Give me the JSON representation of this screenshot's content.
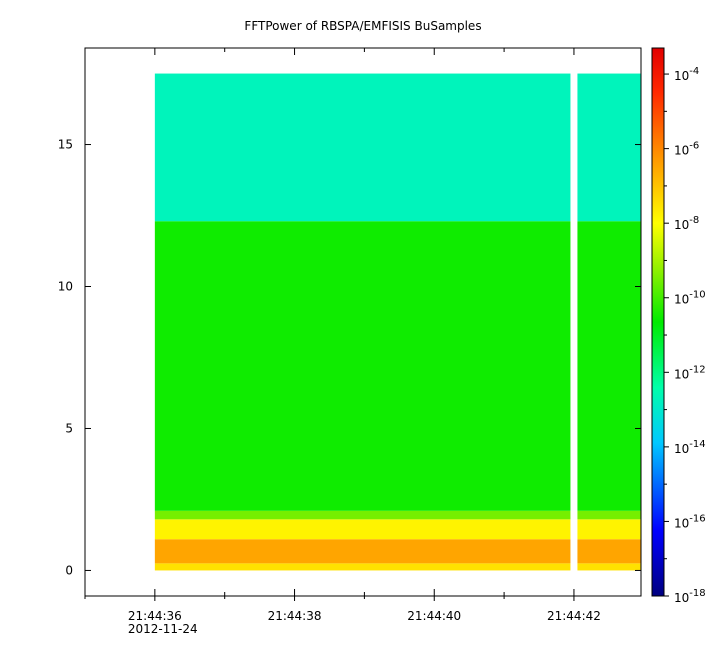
{
  "chart_data": {
    "type": "heatmap",
    "title": "FFTPower of RBSPA/EMFISIS  BuSamples",
    "xlabel": "",
    "ylabel": "",
    "x_axis": {
      "kind": "time",
      "date_label": "2012-11-24",
      "ticks": [
        "21:44:36",
        "21:44:38",
        "21:44:40",
        "21:44:42"
      ],
      "minor_ticks_per_interval": 2,
      "xlim": [
        "21:44:35",
        "21:44:42.96"
      ]
    },
    "y_axis": {
      "ticks": [
        0,
        5,
        10,
        15
      ],
      "ylim": [
        -0.9,
        18.4
      ]
    },
    "colorbar": {
      "scale": "log",
      "colormap": "rainbow",
      "range": [
        1e-18,
        0.0005
      ],
      "tick_base": "10",
      "tick_exponents": [
        "-4",
        "-6",
        "-8",
        "-10",
        "-12",
        "-14",
        "-16",
        "-18"
      ],
      "tick_values": [
        -4,
        -6,
        -8,
        -10,
        -12,
        -14,
        -16,
        -18
      ]
    },
    "data": {
      "x_start": "21:44:36",
      "x_end": "21:44:43",
      "y_top": 17.5,
      "bands": [
        {
          "y_from": 0.0,
          "y_to": 0.25,
          "log10_power": -7.5
        },
        {
          "y_from": 0.25,
          "y_to": 1.1,
          "log10_power": -6.5
        },
        {
          "y_from": 1.1,
          "y_to": 1.8,
          "log10_power": -7.8
        },
        {
          "y_from": 1.8,
          "y_to": 2.1,
          "log10_power": -9.5
        },
        {
          "y_from": 2.1,
          "y_to": 12.3,
          "log10_power": -10.5
        },
        {
          "y_from": 12.3,
          "y_to": 17.5,
          "log10_power": -12.7
        }
      ],
      "data_gap": {
        "x_from": "21:44:41.95",
        "x_to": "21:44:42.05"
      }
    }
  }
}
